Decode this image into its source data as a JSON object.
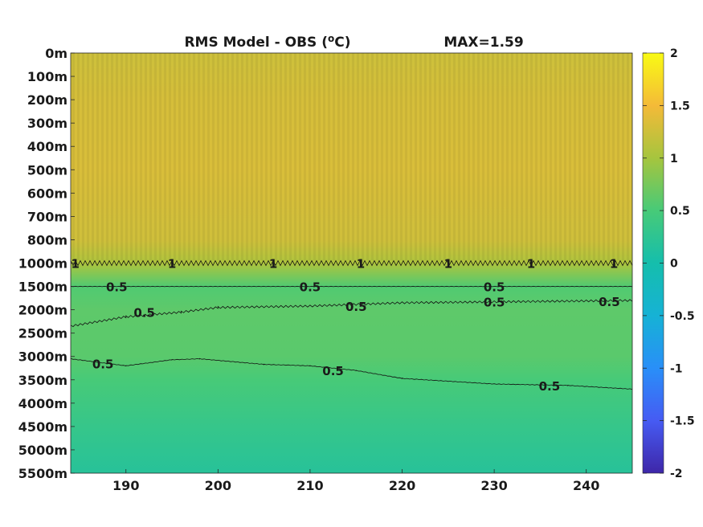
{
  "chart_data": {
    "type": "heatmap",
    "title": "RMS Model - OBS",
    "title_unit_base": "(",
    "title_unit_sup": "o",
    "title_unit_rest": "C)",
    "max_label": "MAX=1.59",
    "y_ticks": [
      "0m",
      "100m",
      "200m",
      "300m",
      "400m",
      "500m",
      "600m",
      "700m",
      "800m",
      "1000m",
      "1500m",
      "2000m",
      "2500m",
      "3000m",
      "3500m",
      "4000m",
      "4500m",
      "5000m",
      "5500m"
    ],
    "x_ticks": [
      190,
      200,
      210,
      220,
      230,
      240
    ],
    "x_range": [
      184,
      245
    ],
    "colorbar": {
      "min": -2,
      "max": 2,
      "ticks": [
        2,
        1.5,
        1,
        0.5,
        0,
        -0.5,
        -1,
        -1.5,
        -2
      ],
      "tick_labels": [
        "2",
        "1.5",
        "1",
        "0.5",
        "0",
        "-0.5",
        "-1",
        "-1.5",
        "-2"
      ]
    },
    "depth_profile": [
      {
        "depth": "0m",
        "value": 1.25
      },
      {
        "depth": "200m",
        "value": 1.3
      },
      {
        "depth": "500m",
        "value": 1.33
      },
      {
        "depth": "800m",
        "value": 1.26
      },
      {
        "depth": "1000m",
        "value": 1.05
      },
      {
        "depth": "1500m",
        "value": 0.55
      },
      {
        "depth": "2000m",
        "value": 0.62
      },
      {
        "depth": "3000m",
        "value": 0.6
      },
      {
        "depth": "3500m",
        "value": 0.5
      },
      {
        "depth": "4500m",
        "value": 0.33
      },
      {
        "depth": "5500m",
        "value": 0.18
      }
    ],
    "contours": [
      {
        "level": "1",
        "points": [
          [
            184,
            "1000m"
          ],
          [
            245,
            "1000m"
          ]
        ],
        "labels": [
          [
            184.5,
            "1000m"
          ],
          [
            195,
            "1000m"
          ],
          [
            206,
            "1000m"
          ],
          [
            215.5,
            "1000m"
          ],
          [
            225,
            "1000m"
          ],
          [
            234,
            "1000m"
          ],
          [
            243,
            "1000m"
          ]
        ]
      },
      {
        "level": "0.5",
        "points": [
          [
            184,
            "1500m"
          ],
          [
            245,
            "1500m"
          ]
        ],
        "labels": [
          [
            189,
            "1500m"
          ],
          [
            210,
            "1500m"
          ],
          [
            230,
            "1500m"
          ]
        ]
      },
      {
        "level": "0.5",
        "points": [
          [
            184,
            "2350m"
          ],
          [
            190,
            "2150m"
          ],
          [
            196,
            "2050m"
          ],
          [
            200,
            "1950m"
          ],
          [
            210,
            "1920m"
          ],
          [
            220,
            "1850m"
          ],
          [
            230,
            "1830m"
          ],
          [
            245,
            "1800m"
          ]
        ],
        "labels": [
          [
            192,
            "2050m"
          ],
          [
            215,
            "1920m"
          ],
          [
            230,
            "1830m"
          ],
          [
            242.5,
            "1820m"
          ]
        ]
      },
      {
        "level": "0.5",
        "points": [
          [
            184,
            "3050m"
          ],
          [
            190,
            "3200m"
          ],
          [
            195,
            "3070m"
          ],
          [
            198,
            "3050m"
          ],
          [
            205,
            "3170m"
          ],
          [
            210,
            "3200m"
          ],
          [
            215,
            "3300m"
          ],
          [
            220,
            "3470m"
          ],
          [
            230,
            "3590m"
          ],
          [
            238,
            "3620m"
          ],
          [
            245,
            "3700m"
          ]
        ],
        "labels": [
          [
            187.5,
            "3150m"
          ],
          [
            212.5,
            "3300m"
          ],
          [
            236,
            "3620m"
          ]
        ]
      }
    ]
  }
}
